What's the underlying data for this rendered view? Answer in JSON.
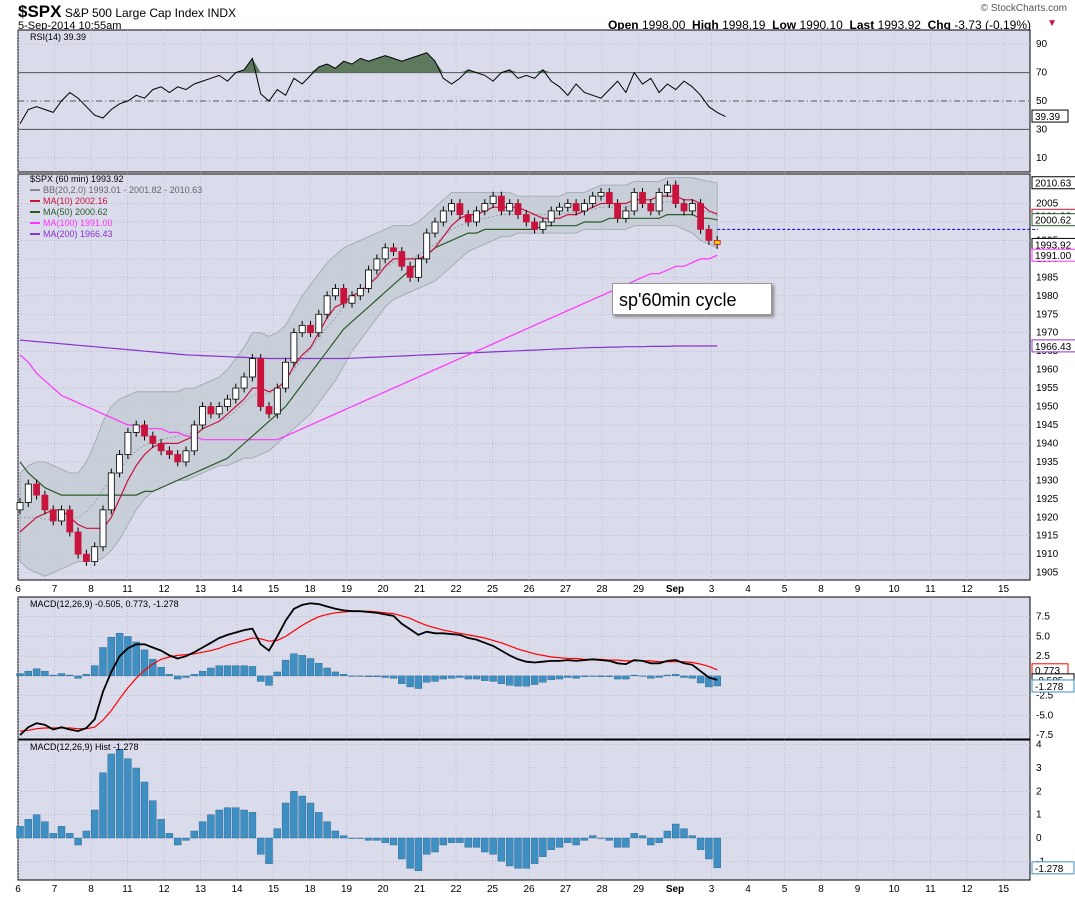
{
  "header": {
    "symbol": "$SPX",
    "name": "S&P 500 Large Cap Index",
    "exchange": "INDX",
    "datetime": "5-Sep-2014 10:55am",
    "open_label": "Open",
    "open": "1998.00",
    "high_label": "High",
    "high": "1998.19",
    "low_label": "Low",
    "low": "1990.10",
    "last_label": "Last",
    "last": "1993.92",
    "chg_label": "Chg",
    "chg": "-3.73 (-0.19%)",
    "credit": "© StockCharts.com"
  },
  "annotation": "sp'60min cycle",
  "colors": {
    "panel_bg": "#dadbeb",
    "grid": "#a9aabf",
    "up": "#ffffff",
    "down": "#c8143c",
    "ma10": "#c8143c",
    "ma50": "#2b5a2b",
    "ma100": "#ff33ff",
    "ma200": "#8833cc",
    "bb_fill": "#c4ccd4",
    "rsi_fill": "#5e7a5e",
    "macd_line": "#000000",
    "signal_line": "#ff0000",
    "hist": "#3f8fc2"
  },
  "chart_data": [
    {
      "type": "line",
      "title": "RSI(14) 39.39",
      "ylim": [
        0,
        100
      ],
      "y_ticks": [
        10,
        30,
        50,
        70,
        90
      ],
      "levels": [
        30,
        50,
        70
      ],
      "last_label": "39.39",
      "series": [
        {
          "name": "RSI(14)",
          "values": [
            34,
            44,
            46,
            44,
            42,
            50,
            56,
            52,
            46,
            40,
            38,
            44,
            48,
            50,
            54,
            52,
            58,
            60,
            56,
            60,
            58,
            62,
            64,
            66,
            68,
            64,
            70,
            72,
            80,
            55,
            50,
            58,
            54,
            66,
            62,
            68,
            74,
            76,
            73,
            78,
            76,
            80,
            78,
            80,
            82,
            80,
            78,
            80,
            82,
            84,
            78,
            66,
            62,
            66,
            72,
            70,
            68,
            64,
            70,
            72,
            66,
            68,
            66,
            72,
            64,
            60,
            54,
            62,
            56,
            54,
            52,
            58,
            64,
            56,
            70,
            62,
            66,
            56,
            62,
            58,
            64,
            60,
            54,
            46,
            42,
            39
          ]
        }
      ]
    },
    {
      "type": "candlestick",
      "title": "$SPX (60 min) 1993.92",
      "ylim": [
        1903,
        2013
      ],
      "y_ticks": [
        1905,
        1910,
        1915,
        1920,
        1925,
        1930,
        1935,
        1940,
        1945,
        1950,
        1955,
        1960,
        1965,
        1970,
        1975,
        1980,
        1985,
        1990,
        1995,
        2000,
        2005
      ],
      "x_ticks": [
        "6",
        "7",
        "8",
        "11",
        "12",
        "13",
        "14",
        "15",
        "18",
        "19",
        "20",
        "21",
        "22",
        "25",
        "26",
        "27",
        "28",
        "29",
        "Sep",
        "3",
        "4",
        "5",
        "8",
        "9",
        "10",
        "11",
        "12",
        "15"
      ],
      "legend": [
        {
          "label": "BB(20,2.0) 1993.01 - 2001.82 - 2010.63"
        },
        {
          "label": "MA(10) 2002.16"
        },
        {
          "label": "MA(50) 2000.62"
        },
        {
          "label": "MA(100) 1991.00"
        },
        {
          "label": "MA(200) 1966.43"
        }
      ],
      "price_labels": [
        "2010.63",
        "2001.82",
        "2000.62",
        "1993.92",
        "1991.00",
        "1966.43"
      ],
      "close": [
        1924,
        1929,
        1926,
        1922,
        1919,
        1922,
        1916,
        1910,
        1908,
        1912,
        1922,
        1932,
        1937,
        1943,
        1945,
        1942,
        1940,
        1938,
        1937,
        1935,
        1938,
        1945,
        1950,
        1948,
        1950,
        1952,
        1955,
        1958,
        1963,
        1950,
        1948,
        1955,
        1962,
        1970,
        1972,
        1970,
        1975,
        1980,
        1982,
        1978,
        1980,
        1982,
        1987,
        1990,
        1993,
        1992,
        1988,
        1985,
        1990,
        1997,
        2000,
        2003,
        2005,
        2002,
        2000,
        2003,
        2005,
        2007,
        2003,
        2005,
        2002,
        2000,
        1998,
        2000,
        2003,
        2004,
        2005,
        2003,
        2005,
        2007,
        2008,
        2005,
        2001,
        2003,
        2008,
        2005,
        2003,
        2008,
        2010,
        2005,
        2003,
        2005,
        1998,
        1995,
        1993.9
      ],
      "ma10": [
        1916,
        1918,
        1920,
        1921,
        1922,
        1922,
        1920,
        1918,
        1917,
        1917,
        1917,
        1920,
        1925,
        1930,
        1934,
        1937,
        1939,
        1940,
        1940,
        1940,
        1941,
        1942,
        1944,
        1945,
        1946,
        1948,
        1950,
        1952,
        1955,
        1955,
        1954,
        1955,
        1957,
        1961,
        1964,
        1966,
        1970,
        1974,
        1977,
        1978,
        1980,
        1981,
        1983,
        1985,
        1988,
        1990,
        1990,
        1990,
        1990,
        1991,
        1993,
        1996,
        1999,
        2001,
        2002,
        2002,
        2003,
        2004,
        2004,
        2004,
        2004,
        2003,
        2002,
        2001,
        2001,
        2001,
        2002,
        2002,
        2003,
        2004,
        2005,
        2005,
        2005,
        2005,
        2006,
        2006,
        2006,
        2007,
        2007,
        2007,
        2006,
        2006,
        2005,
        2003,
        2002.2
      ],
      "ma50": [
        1935,
        1932,
        1930,
        1928,
        1927,
        1926,
        1926,
        1926,
        1926,
        1926,
        1926,
        1926,
        1926,
        1926,
        1926,
        1927,
        1927,
        1928,
        1929,
        1930,
        1931,
        1932,
        1933,
        1934,
        1935,
        1936,
        1938,
        1940,
        1942,
        1944,
        1946,
        1948,
        1950,
        1953,
        1956,
        1959,
        1962,
        1965,
        1968,
        1971,
        1973,
        1975,
        1977,
        1979,
        1981,
        1983,
        1985,
        1987,
        1989,
        1991,
        1993,
        1994,
        1995,
        1996,
        1997,
        1997,
        1998,
        1998,
        1998,
        1998,
        1998,
        1998,
        1998,
        1999,
        1999,
        1999,
        1999,
        1999,
        2000,
        2000,
        2000,
        2001,
        2001,
        2001,
        2001,
        2001,
        2001,
        2001,
        2002,
        2002,
        2002,
        2002,
        2001,
        2001,
        2000.6
      ],
      "ma100": [
        1964,
        1962,
        1959,
        1957,
        1955,
        1953,
        1952,
        1951,
        1950,
        1949,
        1948,
        1947,
        1946,
        1945,
        1945,
        1944,
        1944,
        1944,
        1943,
        1943,
        1942,
        1942,
        1941,
        1941,
        1941,
        1941,
        1941,
        1941,
        1941,
        1941,
        1941,
        1941,
        1942,
        1943,
        1944,
        1945,
        1946,
        1947,
        1948,
        1949,
        1950,
        1951,
        1952,
        1953,
        1954,
        1955,
        1956,
        1957,
        1958,
        1959,
        1960,
        1961,
        1962,
        1963,
        1964,
        1965,
        1966,
        1967,
        1968,
        1969,
        1970,
        1971,
        1972,
        1973,
        1974,
        1975,
        1976,
        1977,
        1978,
        1979,
        1980,
        1981,
        1982,
        1983,
        1984,
        1985,
        1986,
        1986,
        1987,
        1988,
        1988,
        1989,
        1990,
        1990,
        1991
      ],
      "ma200": [
        1968,
        1967.8,
        1967.6,
        1967.4,
        1967.2,
        1967,
        1966.8,
        1966.6,
        1966.4,
        1966.2,
        1966,
        1965.8,
        1965.6,
        1965.4,
        1965.2,
        1965,
        1964.8,
        1964.6,
        1964.4,
        1964.2,
        1964,
        1963.9,
        1963.8,
        1963.7,
        1963.6,
        1963.5,
        1963.4,
        1963.3,
        1963.2,
        1963.1,
        1963,
        1963,
        1963,
        1963,
        1963,
        1963,
        1963,
        1963,
        1963,
        1963,
        1963.1,
        1963.2,
        1963.3,
        1963.4,
        1963.5,
        1963.6,
        1963.7,
        1963.8,
        1963.9,
        1964,
        1964.1,
        1964.2,
        1964.3,
        1964.4,
        1964.5,
        1964.6,
        1964.7,
        1964.8,
        1964.9,
        1965,
        1965.1,
        1965.2,
        1965.3,
        1965.4,
        1965.5,
        1965.6,
        1965.7,
        1965.8,
        1965.9,
        1966,
        1966,
        1966.1,
        1966.1,
        1966.2,
        1966.2,
        1966.2,
        1966.3,
        1966.3,
        1966.3,
        1966.4,
        1966.4,
        1966.4,
        1966.4,
        1966.4,
        1966.43
      ],
      "bb_upper": [
        1932,
        1934,
        1935,
        1935,
        1934,
        1933,
        1932,
        1932,
        1935,
        1940,
        1946,
        1950,
        1952,
        1953,
        1954,
        1954,
        1954,
        1954,
        1954,
        1954,
        1955,
        1955,
        1956,
        1957,
        1958,
        1960,
        1963,
        1966,
        1970,
        1970,
        1969,
        1970,
        1972,
        1976,
        1980,
        1983,
        1986,
        1989,
        1991,
        1993,
        1994,
        1995,
        1996,
        1997,
        1998,
        1999,
        1999,
        1999,
        2000,
        2002,
        2004,
        2006,
        2008,
        2008,
        2008,
        2008,
        2008,
        2008,
        2008,
        2008,
        2007,
        2007,
        2007,
        2007,
        2007,
        2007,
        2008,
        2008,
        2008,
        2009,
        2010,
        2010,
        2010,
        2010,
        2011,
        2011,
        2011,
        2011,
        2012,
        2012,
        2012,
        2012,
        2011.5,
        2011,
        2010.6
      ],
      "bb_lower": [
        1908,
        1906,
        1905,
        1904,
        1905,
        1906,
        1907,
        1908,
        1908,
        1908,
        1909,
        1911,
        1914,
        1918,
        1922,
        1925,
        1927,
        1928,
        1929,
        1930,
        1930,
        1931,
        1932,
        1933,
        1934,
        1934,
        1935,
        1936,
        1936,
        1937,
        1938,
        1940,
        1942,
        1944,
        1946,
        1948,
        1951,
        1954,
        1957,
        1961,
        1965,
        1968,
        1971,
        1974,
        1977,
        1979,
        1980,
        1981,
        1982,
        1983,
        1984,
        1986,
        1988,
        1990,
        1992,
        1993,
        1994,
        1995,
        1996,
        1996,
        1997,
        1997,
        1997,
        1997,
        1997,
        1997,
        1997,
        1997,
        1998,
        1998,
        1998,
        1998,
        1998,
        1998,
        1999,
        1999,
        1999,
        1999,
        1999,
        1999,
        1998,
        1997,
        1995,
        1994,
        1993
      ]
    },
    {
      "type": "line",
      "title": "MACD(12,26,9) -0.505, 0.773, -1.278",
      "ylim": [
        -8,
        10
      ],
      "y_ticks": [
        -7.5,
        -5.0,
        -2.5,
        0.0,
        2.5,
        5.0,
        7.5
      ],
      "y_tick_labels": [
        "-7.5",
        "-5.0",
        "-2.5",
        "0.0",
        "2.5",
        "5.0",
        "7.5"
      ],
      "last_labels": [
        "0.773",
        "-0.505",
        "-1.278"
      ],
      "series": [
        {
          "name": "MACD(12,26,9)",
          "values": [
            -7.5,
            -6.5,
            -6,
            -6.2,
            -6.8,
            -6.5,
            -6.8,
            -7,
            -6.6,
            -5.5,
            -2,
            0.5,
            2.5,
            3.5,
            4,
            4,
            3.6,
            3.2,
            2.6,
            2.2,
            2.5,
            3,
            3.6,
            4.2,
            4.8,
            5.2,
            5.5,
            5.8,
            6,
            4,
            3.2,
            5,
            7,
            8.5,
            9,
            9.2,
            9.1,
            8.8,
            8.5,
            8.3,
            8.2,
            8.2,
            8.1,
            8,
            7.8,
            7.6,
            6.6,
            5.9,
            5.2,
            5.6,
            5.4,
            5.4,
            5.3,
            5.2,
            4.8,
            4.6,
            4.2,
            3.8,
            3.2,
            2.6,
            2.1,
            1.8,
            1.7,
            1.8,
            1.9,
            1.9,
            2,
            1.9,
            2,
            2.1,
            2,
            1.9,
            1.6,
            1.5,
            2,
            1.9,
            1.6,
            1.6,
            1.9,
            2,
            1.6,
            1.4,
            0.6,
            -0.2,
            -0.505
          ]
        },
        {
          "name": "Signal",
          "values": [
            -7,
            -6.9,
            -6.7,
            -6.6,
            -6.6,
            -6.6,
            -6.6,
            -6.7,
            -6.7,
            -6.5,
            -5.6,
            -4.4,
            -2.9,
            -1.5,
            -0.3,
            0.7,
            1.5,
            2.1,
            2.4,
            2.6,
            2.7,
            2.8,
            3,
            3.2,
            3.5,
            3.9,
            4.2,
            4.5,
            4.8,
            4.7,
            4.4,
            4.5,
            5,
            5.7,
            6.4,
            7,
            7.5,
            7.8,
            8,
            8.1,
            8.2,
            8.2,
            8.2,
            8.1,
            8,
            7.9,
            7.6,
            7.3,
            6.8,
            6.4,
            6.1,
            5.8,
            5.6,
            5.4,
            5.2,
            5,
            4.8,
            4.5,
            4.2,
            3.8,
            3.4,
            3.1,
            2.8,
            2.6,
            2.4,
            2.3,
            2.2,
            2.2,
            2.1,
            2.1,
            2.1,
            2,
            2,
            1.9,
            1.9,
            1.9,
            1.9,
            1.8,
            1.8,
            1.8,
            1.8,
            1.7,
            1.5,
            1.2,
            0.773
          ]
        }
      ],
      "histogram": [
        0.3,
        0.6,
        0.9,
        0.6,
        0.1,
        0.3,
        0.1,
        -0.3,
        0.2,
        1.3,
        3.6,
        4.9,
        5.4,
        5,
        4.3,
        3.3,
        2.1,
        1.1,
        0.2,
        -0.4,
        -0.2,
        0.2,
        0.6,
        1,
        1.3,
        1.3,
        1.3,
        1.3,
        1.2,
        -0.7,
        -1.2,
        0.5,
        2,
        2.8,
        2.6,
        2.2,
        1.6,
        1,
        0.5,
        0.2,
        0,
        0,
        -0.1,
        -0.1,
        -0.2,
        -0.3,
        -1,
        -1.4,
        -1.6,
        -0.8,
        -0.7,
        -0.4,
        -0.3,
        -0.2,
        -0.4,
        -0.4,
        -0.6,
        -0.7,
        -1,
        -1.2,
        -1.3,
        -1.3,
        -1.1,
        -0.8,
        -0.5,
        -0.4,
        -0.2,
        -0.3,
        -0.1,
        0,
        -0.1,
        -0.1,
        -0.4,
        -0.4,
        0.1,
        0,
        -0.3,
        -0.2,
        0.1,
        0.2,
        -0.2,
        -0.3,
        -0.9,
        -1.4,
        -1.278
      ]
    },
    {
      "type": "bar",
      "title": "MACD(12,26,9) Hist -1.278",
      "ylim": [
        -1.8,
        4.2
      ],
      "y_ticks": [
        -1,
        0,
        1,
        2,
        3,
        4
      ],
      "last_label": "-1.278",
      "x_ticks": [
        "6",
        "7",
        "8",
        "11",
        "12",
        "13",
        "14",
        "15",
        "18",
        "19",
        "20",
        "21",
        "22",
        "25",
        "26",
        "27",
        "28",
        "29",
        "Sep",
        "3",
        "4",
        "5",
        "8",
        "9",
        "10",
        "11",
        "12",
        "15"
      ],
      "values": [
        0.5,
        0.8,
        1,
        0.7,
        0.2,
        0.5,
        0.2,
        -0.3,
        0.3,
        1.2,
        2.8,
        3.6,
        3.8,
        3.4,
        3,
        2.4,
        1.6,
        0.8,
        0.2,
        -0.3,
        -0.1,
        0.3,
        0.7,
        1,
        1.2,
        1.3,
        1.3,
        1.2,
        1.1,
        -0.7,
        -1.1,
        0.4,
        1.5,
        2,
        1.8,
        1.5,
        1.1,
        0.7,
        0.3,
        0.1,
        0,
        0,
        -0.1,
        -0.1,
        -0.2,
        -0.3,
        -0.9,
        -1.3,
        -1.4,
        -0.7,
        -0.6,
        -0.3,
        -0.2,
        -0.2,
        -0.4,
        -0.4,
        -0.6,
        -0.7,
        -1,
        -1.2,
        -1.3,
        -1.3,
        -1.1,
        -0.8,
        -0.5,
        -0.4,
        -0.2,
        -0.3,
        -0.1,
        0.1,
        0,
        -0.1,
        -0.4,
        -0.4,
        0.2,
        0.1,
        -0.3,
        -0.2,
        0.3,
        0.6,
        0.4,
        0.1,
        -0.5,
        -0.9,
        -1.278
      ]
    }
  ]
}
